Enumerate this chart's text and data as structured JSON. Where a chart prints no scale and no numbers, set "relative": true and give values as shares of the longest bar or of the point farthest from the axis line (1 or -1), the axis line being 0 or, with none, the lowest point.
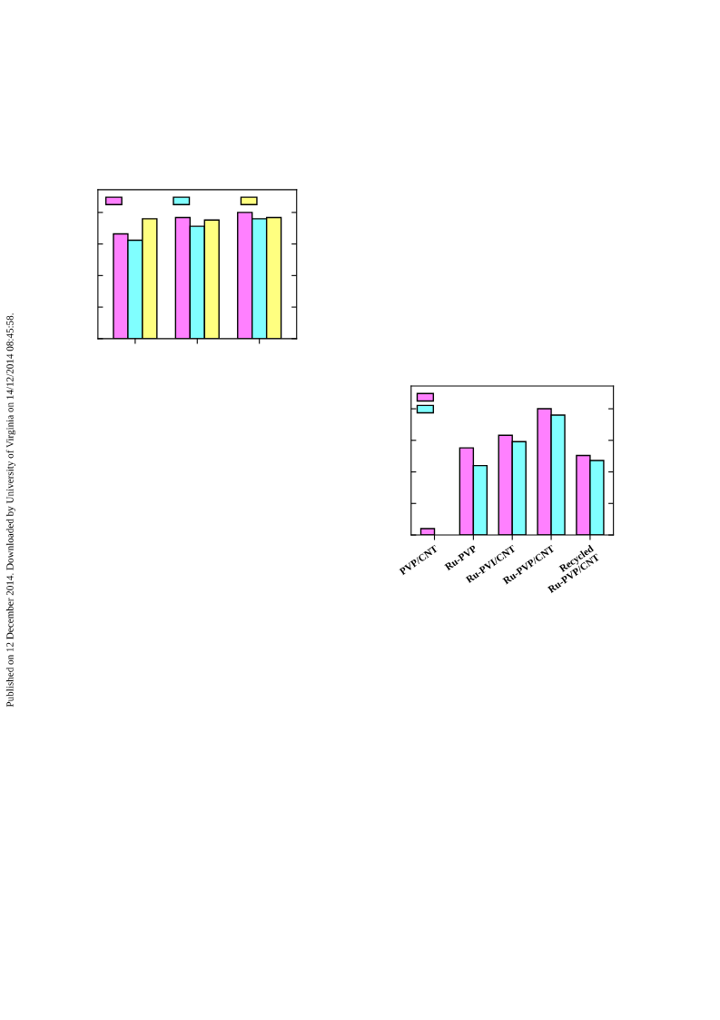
{
  "chart_data": [
    {
      "type": "bar",
      "relative": true,
      "categories": [
        null,
        null,
        null
      ],
      "tick_labels": false,
      "grid": false,
      "series": [
        {
          "color": "#ff80ff",
          "values": [
            0.83,
            0.96,
            1
          ]
        },
        {
          "color": "#80ffff",
          "values": [
            0.78,
            0.89,
            0.95
          ]
        },
        {
          "color": "#ffff80",
          "values": [
            0.95,
            0.94,
            0.96
          ]
        }
      ],
      "annotations": [
        "Published on 12 December 2014. Downloaded by University of Virginia on 14/12/2014 08:45:58."
      ]
    },
    {
      "type": "bar",
      "relative": true,
      "categories": [
        "PVP/CNT",
        "Ru-PVP",
        "Ru-PVI/CNT",
        "Ru-PVP/CNT",
        "Recycled\nRu-PVP/CNT"
      ],
      "tick_labels": "x",
      "grid": false,
      "series": [
        {
          "color": "#ff80ff",
          "values": [
            0.05,
            0.69,
            0.79,
            1,
            0.63
          ]
        },
        {
          "color": "#80ffff",
          "values": [
            null,
            0.55,
            0.74,
            0.95,
            0.59
          ]
        }
      ]
    }
  ]
}
